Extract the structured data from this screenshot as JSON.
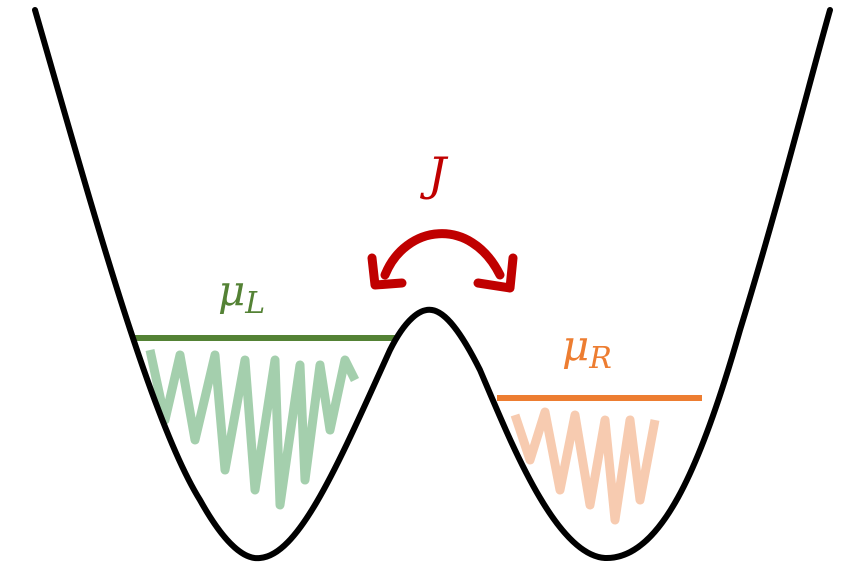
{
  "labels": {
    "coupling": "J",
    "left": {
      "symbol": "μ",
      "subscript": "L"
    },
    "right": {
      "symbol": "μ",
      "subscript": "R"
    }
  }
}
